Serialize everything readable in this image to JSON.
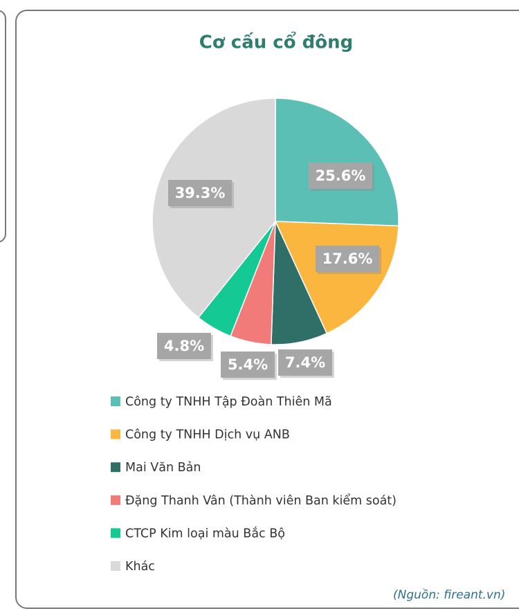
{
  "chart_data": {
    "type": "pie",
    "title": "Cơ cấu cổ đông",
    "categories": [
      "Công ty TNHH Tập Đoàn Thiên Mã",
      "Công ty TNHH Dịch vụ ANB",
      "Mai Văn Bản",
      "Đặng Thanh Vân (Thành viên Ban kiểm soát)",
      "CTCP Kim loại màu Bắc Bộ",
      "Khác"
    ],
    "values": [
      25.6,
      17.6,
      7.4,
      5.4,
      4.8,
      39.3
    ],
    "value_labels": [
      "25.6%",
      "17.6%",
      "7.4%",
      "5.4%",
      "4.8%",
      "39.3%"
    ],
    "colors": [
      "#5bbfb6",
      "#fbb63f",
      "#2f6f67",
      "#f07b79",
      "#15c995",
      "#d9d9d9"
    ],
    "legend": "bottom",
    "source": "(Nguồn: fireant.vn)"
  }
}
